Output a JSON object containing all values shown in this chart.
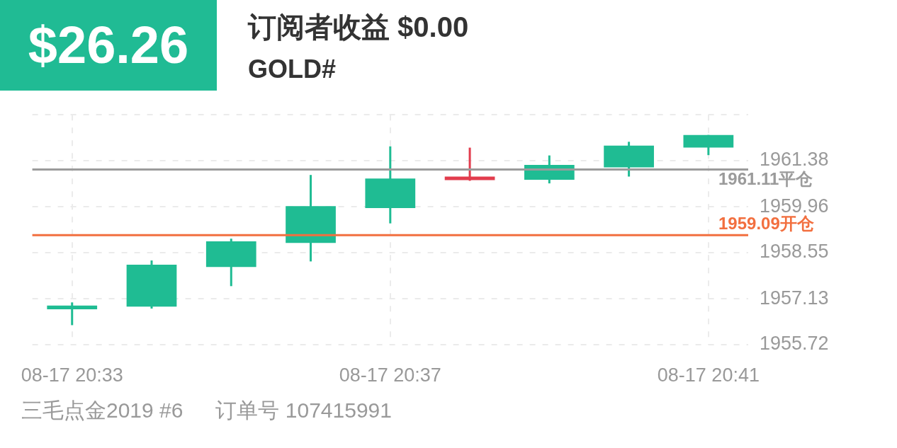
{
  "chart_data": {
    "type": "candlestick",
    "title": "订阅者收益 $0.00",
    "subtitle": "GOLD#",
    "annotations": [
      "$26.26",
      "三毛点金2019 #6",
      "订单号 107415991"
    ],
    "categories": [
      "08-17 20:33",
      null,
      null,
      null,
      "08-17 20:37",
      null,
      null,
      null,
      "08-17 20:41"
    ],
    "ohlc": [
      [
        1956.81,
        1957.02,
        1956.32,
        1956.92
      ],
      [
        1956.89,
        1958.31,
        1956.83,
        1958.18
      ],
      [
        1958.11,
        1958.98,
        1957.52,
        1958.9
      ],
      [
        1958.85,
        1960.94,
        1958.28,
        1959.98
      ],
      [
        1959.92,
        1961.82,
        1959.45,
        1960.83
      ],
      [
        1960.89,
        1961.78,
        1960.76,
        1960.78
      ],
      [
        1960.79,
        1961.54,
        1960.68,
        1961.25
      ],
      [
        1961.17,
        1961.96,
        1960.89,
        1961.84
      ],
      [
        1961.78,
        1962.17,
        1961.55,
        1962.17
      ]
    ],
    "colors": [
      "#1fbc93",
      "#1fbc93",
      "#1fbc93",
      "#1fbc93",
      "#1fbc93",
      "#e23c4d",
      "#1fbc93",
      "#1fbc93",
      "#1fbc93"
    ],
    "ylim": [
      1955.72,
      1962.79
    ],
    "yticks": [
      1955.72,
      1957.13,
      1958.55,
      1959.96,
      1961.38,
      {
        "value": 1962.79,
        "label": null
      }
    ],
    "ref_lines": [
      {
        "axis": "y",
        "value": 1961.11,
        "label": "1961.11平仓",
        "color": "#9b9b9b"
      },
      {
        "axis": "y",
        "value": 1959.09,
        "label": "1959.09开仓",
        "color": "#f26f3f"
      }
    ],
    "grid": true
  }
}
